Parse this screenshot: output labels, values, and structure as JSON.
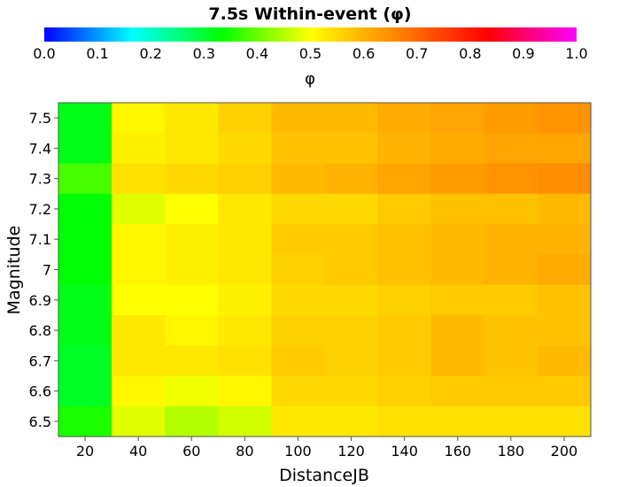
{
  "chart_data": {
    "type": "heatmap",
    "title": "7.5s Within-event (φ)",
    "colorbar": {
      "label": "φ",
      "range": [
        0.0,
        1.0
      ],
      "ticks": [
        "0.0",
        "0.1",
        "0.2",
        "0.3",
        "0.4",
        "0.5",
        "0.6",
        "0.7",
        "0.8",
        "0.9",
        "1.0"
      ],
      "stops": [
        "#0000ff",
        "#00ffff",
        "#00ff00",
        "#ffff00",
        "#ff8000",
        "#ff0000",
        "#ff00ff"
      ]
    },
    "xlabel": "DistanceJB",
    "ylabel": "Magnitude",
    "x_ticks": [
      "20",
      "40",
      "60",
      "80",
      "100",
      "120",
      "140",
      "160",
      "180",
      "200"
    ],
    "y_ticks": [
      "7.5",
      "7.4",
      "7.3",
      "7.2",
      "7.1",
      "7",
      "6.9",
      "6.8",
      "6.7",
      "6.6",
      "6.5"
    ],
    "x": [
      20,
      40,
      60,
      80,
      100,
      120,
      140,
      160,
      180,
      200
    ],
    "y": [
      7.5,
      7.4,
      7.3,
      7.2,
      7.1,
      7.0,
      6.9,
      6.8,
      6.7,
      6.6,
      6.5
    ],
    "values": [
      [
        0.32,
        0.51,
        0.53,
        0.56,
        0.59,
        0.59,
        0.61,
        0.62,
        0.63,
        0.64
      ],
      [
        0.32,
        0.52,
        0.53,
        0.55,
        0.58,
        0.58,
        0.6,
        0.61,
        0.62,
        0.62
      ],
      [
        0.38,
        0.54,
        0.55,
        0.56,
        0.59,
        0.6,
        0.62,
        0.63,
        0.64,
        0.65
      ],
      [
        0.33,
        0.48,
        0.5,
        0.53,
        0.55,
        0.55,
        0.57,
        0.58,
        0.58,
        0.59
      ],
      [
        0.33,
        0.51,
        0.52,
        0.53,
        0.57,
        0.57,
        0.58,
        0.59,
        0.6,
        0.6
      ],
      [
        0.33,
        0.51,
        0.52,
        0.53,
        0.56,
        0.57,
        0.58,
        0.59,
        0.6,
        0.61
      ],
      [
        0.32,
        0.5,
        0.5,
        0.52,
        0.55,
        0.55,
        0.56,
        0.57,
        0.57,
        0.58
      ],
      [
        0.32,
        0.53,
        0.51,
        0.53,
        0.56,
        0.56,
        0.57,
        0.59,
        0.58,
        0.58
      ],
      [
        0.31,
        0.53,
        0.53,
        0.54,
        0.57,
        0.56,
        0.57,
        0.59,
        0.58,
        0.59
      ],
      [
        0.31,
        0.51,
        0.49,
        0.51,
        0.55,
        0.55,
        0.56,
        0.57,
        0.57,
        0.57
      ],
      [
        0.35,
        0.48,
        0.45,
        0.47,
        0.53,
        0.53,
        0.54,
        0.54,
        0.54,
        0.54
      ]
    ]
  }
}
